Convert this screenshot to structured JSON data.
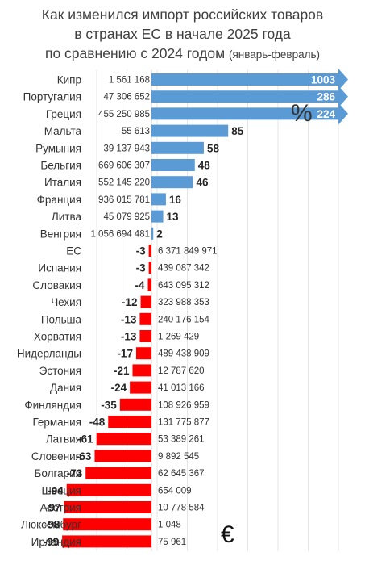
{
  "title": {
    "line1": "Как изменился импорт российских товаров",
    "line2": "в странах ЕС в начале 2025 года",
    "line3": "по сравнению с 2024 годом",
    "line3_note": "(январь-февраль)"
  },
  "units": {
    "percent": "%",
    "euro": "€"
  },
  "colors": {
    "positive": "#5b9bd5",
    "negative": "#ff0000"
  },
  "chart_data": {
    "type": "bar",
    "orientation": "horizontal",
    "value_unit": "%",
    "amount_unit": "€",
    "grid": true,
    "rows": [
      {
        "country": "Кипр",
        "value": 1003,
        "amount": "1 561 168"
      },
      {
        "country": "Португалия",
        "value": 286,
        "amount": "47 306 652"
      },
      {
        "country": "Греция",
        "value": 224,
        "amount": "455 250 985"
      },
      {
        "country": "Мальта",
        "value": 85,
        "amount": "55 613"
      },
      {
        "country": "Румыния",
        "value": 58,
        "amount": "39 137 943"
      },
      {
        "country": "Бельгия",
        "value": 48,
        "amount": "669 606 307"
      },
      {
        "country": "Италия",
        "value": 46,
        "amount": "552 145 220"
      },
      {
        "country": "Франция",
        "value": 16,
        "amount": "936 015 781"
      },
      {
        "country": "Литва",
        "value": 13,
        "amount": "45 079 925"
      },
      {
        "country": "Венгрия",
        "value": 2,
        "amount": "1 056 694 481"
      },
      {
        "country": "ЕС",
        "value": -3,
        "amount": "6 371 849 971"
      },
      {
        "country": "Испания",
        "value": -3,
        "amount": "439 087 342"
      },
      {
        "country": "Словакия",
        "value": -4,
        "amount": "643 095 312"
      },
      {
        "country": "Чехия",
        "value": -12,
        "amount": "323 988 353"
      },
      {
        "country": "Польша",
        "value": -13,
        "amount": "240 176 154"
      },
      {
        "country": "Хорватия",
        "value": -13,
        "amount": "1 269 429"
      },
      {
        "country": "Нидерланды",
        "value": -17,
        "amount": "489 438 909"
      },
      {
        "country": "Эстония",
        "value": -21,
        "amount": "12 787 620"
      },
      {
        "country": "Дания",
        "value": -24,
        "amount": "41 013 166"
      },
      {
        "country": "Финляндия",
        "value": -35,
        "amount": "108 926 959"
      },
      {
        "country": "Германия",
        "value": -48,
        "amount": "131 775 877"
      },
      {
        "country": "Латвия",
        "value": -61,
        "amount": "53 389 261"
      },
      {
        "country": "Словения",
        "value": -63,
        "amount": "9 892 545"
      },
      {
        "country": "Болгария",
        "value": -73,
        "amount": "62 645 367"
      },
      {
        "country": "Швеция",
        "value": -94,
        "amount": "654 009"
      },
      {
        "country": "Австрия",
        "value": -97,
        "amount": "10 778 584"
      },
      {
        "country": "Люксембург",
        "value": -98,
        "amount": "1 048"
      },
      {
        "country": "Ирландия",
        "value": -99,
        "amount": "75 961"
      }
    ]
  }
}
